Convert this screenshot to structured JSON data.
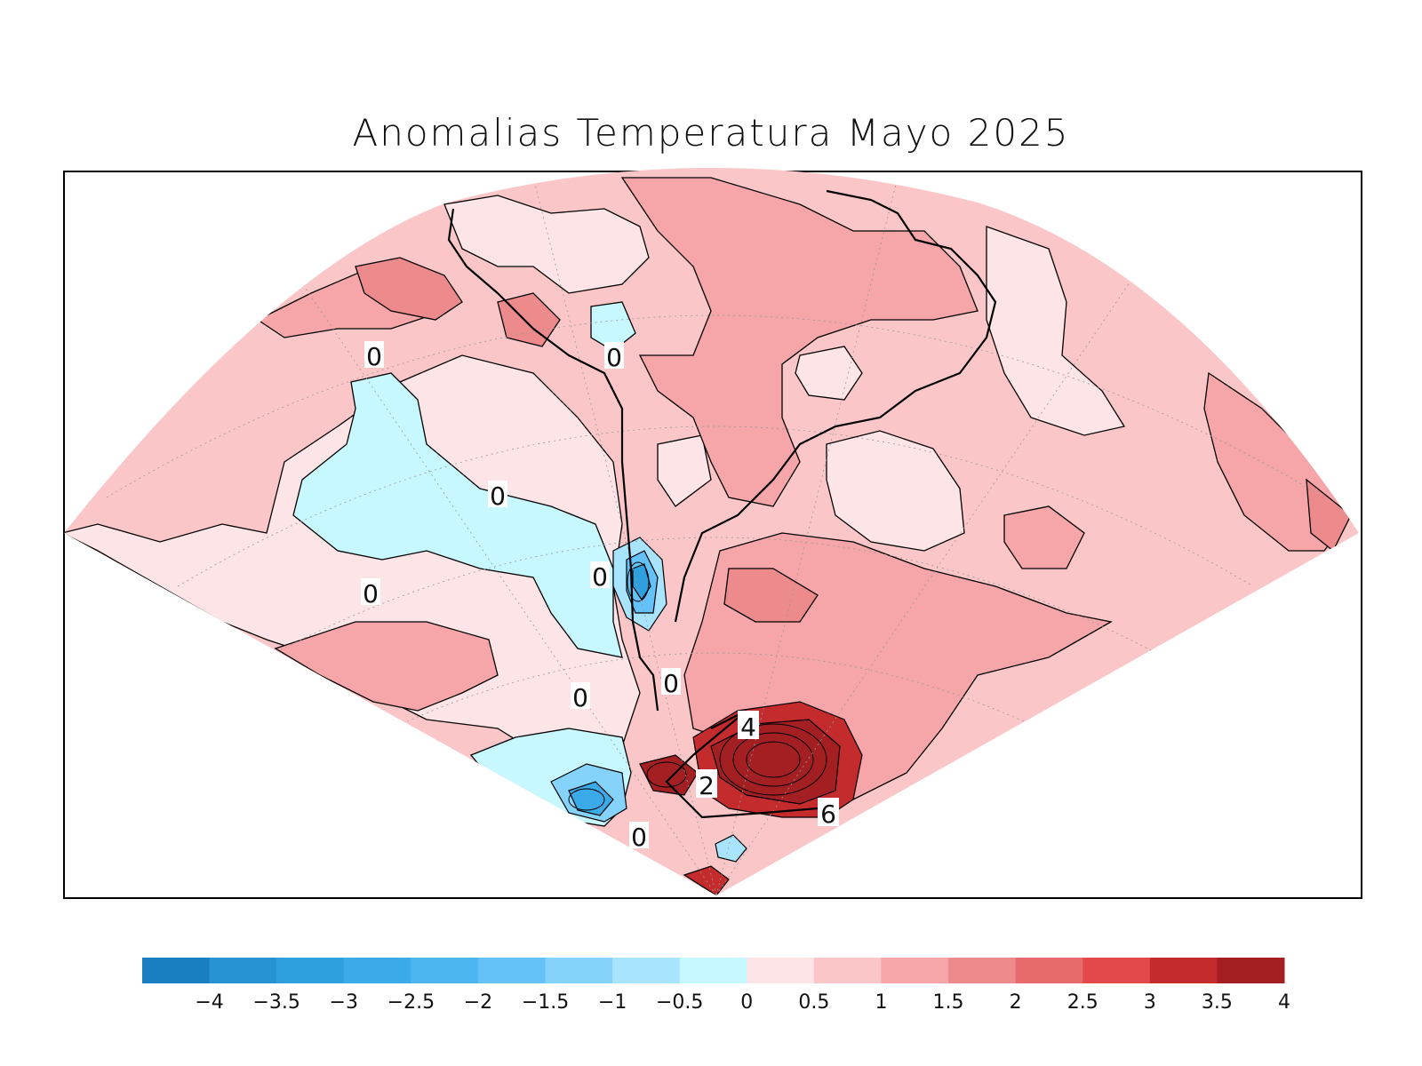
{
  "title": "Anomalias Temperatura Mayo 2025",
  "map": {
    "projection": "polar-stereographic-sector",
    "region": "South America (Bolivia, Paraguay, Argentina, Chile, Uruguay, southern Brazil)",
    "grid_lines": true,
    "contour_labels": [
      "0",
      "0",
      "0",
      "0",
      "0",
      "0",
      "0",
      "0",
      "4",
      "2",
      "6",
      "0"
    ]
  },
  "colorbar": {
    "tick_labels": [
      "−4",
      "−3.5",
      "−3",
      "−2.5",
      "−2",
      "−1.5",
      "−1",
      "−0.5",
      "0",
      "0.5",
      "1",
      "1.5",
      "2",
      "2.5",
      "3",
      "3.5",
      "4"
    ],
    "colors": [
      "#1a7fc0",
      "#2893d2",
      "#2fa0de",
      "#3aaae8",
      "#4cb6f0",
      "#64c2f8",
      "#85d2fb",
      "#a8e4fd",
      "#c8f8ff",
      "#fde4e6",
      "#fbc6c8",
      "#f6a6a8",
      "#ec8a8c",
      "#e76a6c",
      "#e3484a",
      "#c42b2d",
      "#a41f22"
    ]
  },
  "legend_placement": "bottom"
}
